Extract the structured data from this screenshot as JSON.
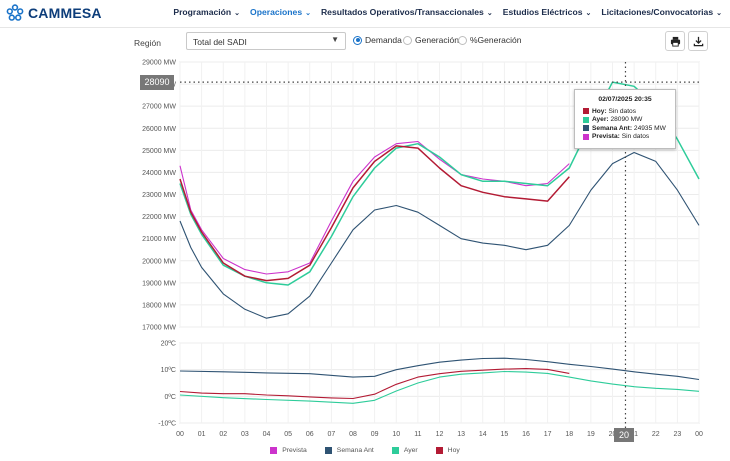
{
  "brand": {
    "name": "CAMMESA"
  },
  "nav": [
    {
      "label": "Programación",
      "active": false
    },
    {
      "label": "Operaciones",
      "active": true
    },
    {
      "label": "Resultados Operativos/Transaccionales",
      "active": false
    },
    {
      "label": "Estudios Eléctricos",
      "active": false
    },
    {
      "label": "Licitaciones/Convocatorias",
      "active": false
    }
  ],
  "controls": {
    "region_label": "Región",
    "region_value": "Total del SADI",
    "radios": [
      {
        "label": "Demanda",
        "selected": true
      },
      {
        "label": "Generación",
        "selected": false
      },
      {
        "label": "%Generación",
        "selected": false
      }
    ],
    "print_icon": "printer-icon",
    "download_icon": "download-icon"
  },
  "colors": {
    "prevista": "#cc33cc",
    "semana_ant": "#2f5373",
    "ayer": "#2ecc9a",
    "hoy": "#b31b34",
    "accent": "#1a73c9"
  },
  "tooltip": {
    "date": "02/07/2025 20:35",
    "rows": [
      {
        "key": "Hoy:",
        "value": "Sin datos",
        "color": "#b31b34"
      },
      {
        "key": "Ayer:",
        "value": "28090 MW",
        "color": "#2ecc9a"
      },
      {
        "key": "Semana Ant:",
        "value": "24935 MW",
        "color": "#2f5373"
      },
      {
        "key": "Prevista:",
        "value": "Sin datos",
        "color": "#cc33cc"
      }
    ]
  },
  "crosshair": {
    "y_value": "28090",
    "x_value": "20"
  },
  "legend": [
    {
      "label": "Prevista",
      "color": "#cc33cc"
    },
    {
      "label": "Semana Ant",
      "color": "#2f5373"
    },
    {
      "label": "Ayer",
      "color": "#2ecc9a"
    },
    {
      "label": "Hoy",
      "color": "#b31b34"
    }
  ],
  "chart_data": [
    {
      "type": "line",
      "title": "",
      "ylabel": "",
      "xlabel": "",
      "ylim": [
        17000,
        29000
      ],
      "xlim": [
        0,
        24
      ],
      "y_ticks": [
        17000,
        18000,
        19000,
        20000,
        21000,
        22000,
        23000,
        24000,
        25000,
        26000,
        27000,
        28000,
        29000
      ],
      "y_tick_labels": [
        "17000 MW",
        "18000 MW",
        "19000 MW",
        "20000 MW",
        "21000 MW",
        "22000 MW",
        "23000 MW",
        "24000 MW",
        "25000 MW",
        "26000 MW",
        "27000 MW",
        "28000 MW",
        "29000 MW"
      ],
      "grid": true,
      "series": [
        {
          "name": "Prevista",
          "x": [
            0,
            0.5,
            1,
            2,
            3,
            4,
            5,
            6,
            7,
            8,
            9,
            10,
            11,
            12,
            13,
            14,
            15,
            16,
            17,
            18
          ],
          "values": [
            24300,
            22300,
            21400,
            20100,
            19600,
            19400,
            19500,
            19900,
            21800,
            23600,
            24700,
            25300,
            25400,
            24600,
            23900,
            23700,
            23600,
            23400,
            23500,
            24400
          ]
        },
        {
          "name": "Semana Ant",
          "x": [
            0,
            0.5,
            1,
            2,
            3,
            4,
            5,
            6,
            7,
            8,
            9,
            10,
            11,
            12,
            13,
            14,
            15,
            16,
            17,
            18,
            19,
            20,
            21,
            22,
            23,
            24
          ],
          "values": [
            21800,
            20600,
            19700,
            18500,
            17800,
            17400,
            17600,
            18400,
            19900,
            21400,
            22300,
            22500,
            22200,
            21600,
            21000,
            20800,
            20700,
            20500,
            20700,
            21600,
            23200,
            24400,
            24900,
            24500,
            23200,
            21600
          ]
        },
        {
          "name": "Ayer",
          "x": [
            0,
            0.5,
            1,
            2,
            3,
            4,
            5,
            6,
            7,
            8,
            9,
            10,
            11,
            12,
            13,
            14,
            15,
            16,
            17,
            18,
            19,
            20,
            21,
            22,
            23,
            24
          ],
          "values": [
            23500,
            22100,
            21200,
            19800,
            19300,
            19000,
            18900,
            19500,
            21100,
            22900,
            24200,
            25100,
            25300,
            24700,
            23900,
            23600,
            23600,
            23500,
            23400,
            24200,
            26200,
            28090,
            27900,
            27000,
            25500,
            23700
          ]
        },
        {
          "name": "Hoy",
          "x": [
            0,
            0.5,
            1,
            2,
            3,
            4,
            5,
            6,
            7,
            8,
            9,
            10,
            11,
            12,
            13,
            14,
            15,
            16,
            17,
            18
          ],
          "values": [
            23700,
            22200,
            21300,
            19900,
            19300,
            19100,
            19200,
            19800,
            21500,
            23300,
            24500,
            25200,
            25100,
            24200,
            23400,
            23100,
            22900,
            22800,
            22700,
            23800
          ]
        }
      ]
    },
    {
      "type": "line",
      "title": "",
      "ylim": [
        -10,
        20
      ],
      "xlim": [
        0,
        24
      ],
      "y_ticks": [
        -10,
        0,
        10,
        20
      ],
      "y_tick_labels": [
        "-10ºC",
        "0ºC",
        "10ºC",
        "20ºC"
      ],
      "x_ticks": [
        0,
        1,
        2,
        3,
        4,
        5,
        6,
        7,
        8,
        9,
        10,
        11,
        12,
        13,
        14,
        15,
        16,
        17,
        18,
        19,
        20,
        21,
        22,
        23,
        24
      ],
      "x_tick_labels": [
        "00",
        "01",
        "02",
        "03",
        "04",
        "05",
        "06",
        "07",
        "08",
        "09",
        "10",
        "11",
        "12",
        "13",
        "14",
        "15",
        "16",
        "17",
        "18",
        "19",
        "20",
        "21",
        "22",
        "23",
        "00"
      ],
      "grid": true,
      "series": [
        {
          "name": "Semana Ant",
          "x": [
            0,
            2,
            4,
            6,
            8,
            9,
            10,
            11,
            12,
            13,
            14,
            15,
            16,
            17,
            18,
            19,
            20,
            21,
            22,
            23,
            24
          ],
          "values": [
            9.5,
            9.2,
            8.8,
            8.5,
            7.2,
            7.5,
            10,
            11.5,
            12.8,
            13.6,
            14.2,
            14.3,
            13.8,
            13,
            12,
            11.2,
            10.2,
            9.2,
            8.3,
            7.5,
            6.3
          ]
        },
        {
          "name": "Ayer",
          "x": [
            0,
            2,
            4,
            6,
            8,
            9,
            10,
            11,
            12,
            13,
            14,
            15,
            16,
            17,
            18,
            19,
            20,
            21,
            22,
            23,
            24
          ],
          "values": [
            0.5,
            -0.5,
            -1.2,
            -1.8,
            -2.6,
            -1.5,
            2,
            5,
            7.2,
            8.3,
            8.8,
            9.3,
            9.1,
            8.6,
            7.2,
            5.8,
            4.6,
            3.6,
            3,
            2.6,
            1.9
          ]
        },
        {
          "name": "Hoy",
          "x": [
            0,
            1,
            2,
            3,
            4,
            5,
            6,
            7,
            8,
            9,
            10,
            11,
            12,
            13,
            14,
            15,
            16,
            17,
            18
          ],
          "values": [
            1.8,
            1.2,
            1,
            1,
            0.5,
            0.2,
            -0.2,
            -0.6,
            -0.8,
            0.8,
            4.5,
            7.2,
            8.5,
            9.4,
            9.8,
            10.2,
            10.4,
            10.1,
            8.6
          ]
        }
      ]
    }
  ]
}
